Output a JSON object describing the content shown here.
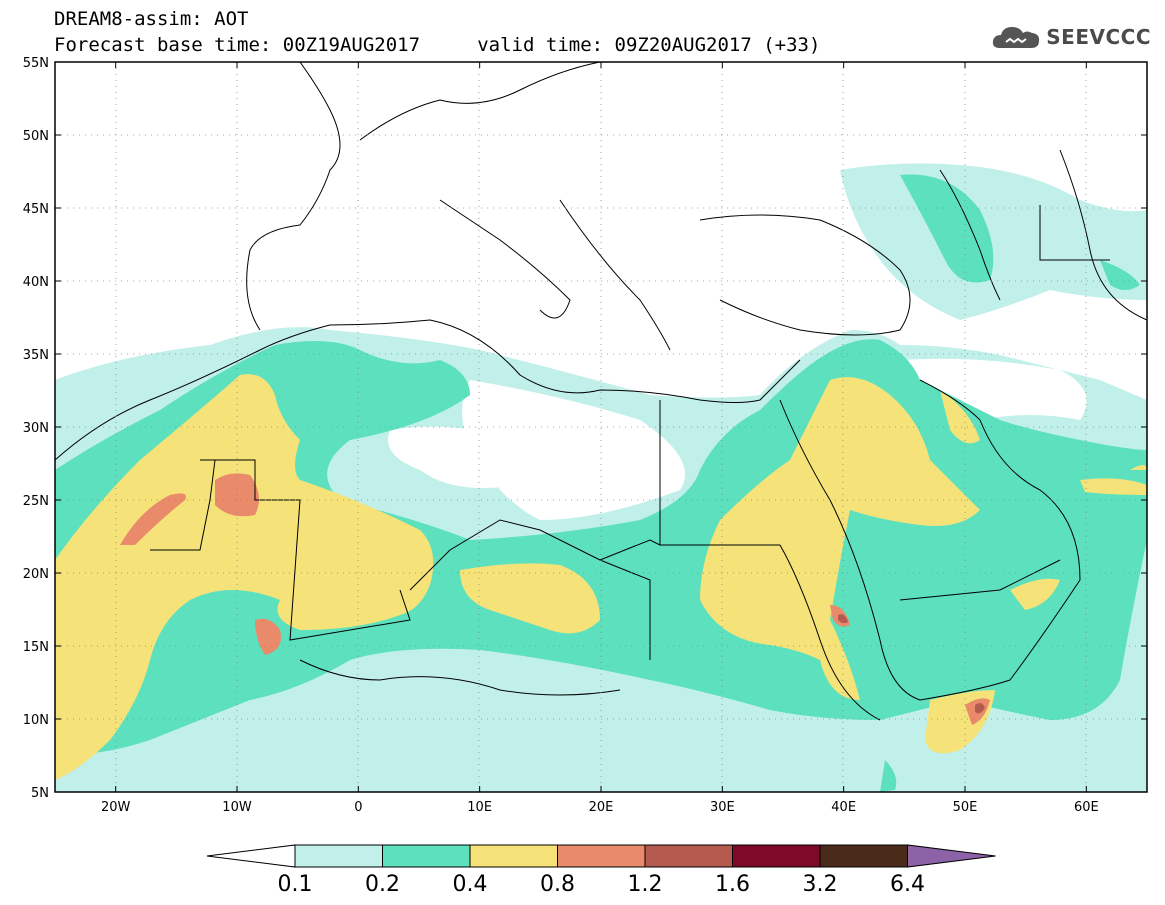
{
  "header": {
    "title_line1": "DREAM8-assim: AOT",
    "title_line2": "Forecast base time: 00Z19AUG2017     valid time: 09Z20AUG2017 (+33)",
    "logo_text": "SEEVCCC"
  },
  "map": {
    "lon_range": [
      -25,
      65
    ],
    "lat_range": [
      5,
      55
    ],
    "lat_ticks": [
      {
        "value": 55,
        "label": "55N"
      },
      {
        "value": 50,
        "label": "50N"
      },
      {
        "value": 45,
        "label": "45N"
      },
      {
        "value": 40,
        "label": "40N"
      },
      {
        "value": 35,
        "label": "35N"
      },
      {
        "value": 30,
        "label": "30N"
      },
      {
        "value": 25,
        "label": "25N"
      },
      {
        "value": 20,
        "label": "20N"
      },
      {
        "value": 15,
        "label": "15N"
      },
      {
        "value": 10,
        "label": "10N"
      },
      {
        "value": 5,
        "label": "5N"
      }
    ],
    "lon_ticks": [
      {
        "value": -20,
        "label": "20W"
      },
      {
        "value": -10,
        "label": "10W"
      },
      {
        "value": 0,
        "label": "0"
      },
      {
        "value": 10,
        "label": "10E"
      },
      {
        "value": 20,
        "label": "20E"
      },
      {
        "value": 30,
        "label": "30E"
      },
      {
        "value": 40,
        "label": "40E"
      },
      {
        "value": 50,
        "label": "50E"
      },
      {
        "value": 60,
        "label": "60E"
      }
    ],
    "grid": "dotted"
  },
  "colorbar": {
    "colors": [
      "#c1f0ea",
      "#5de0be",
      "#f5e37a",
      "#e98a6a",
      "#b55a4f",
      "#7e0a29",
      "#4a2b1a",
      "#8c63a6"
    ],
    "labels": [
      "0.1",
      "0.2",
      "0.4",
      "0.8",
      "1.2",
      "1.6",
      "3.2",
      "6.4"
    ]
  }
}
